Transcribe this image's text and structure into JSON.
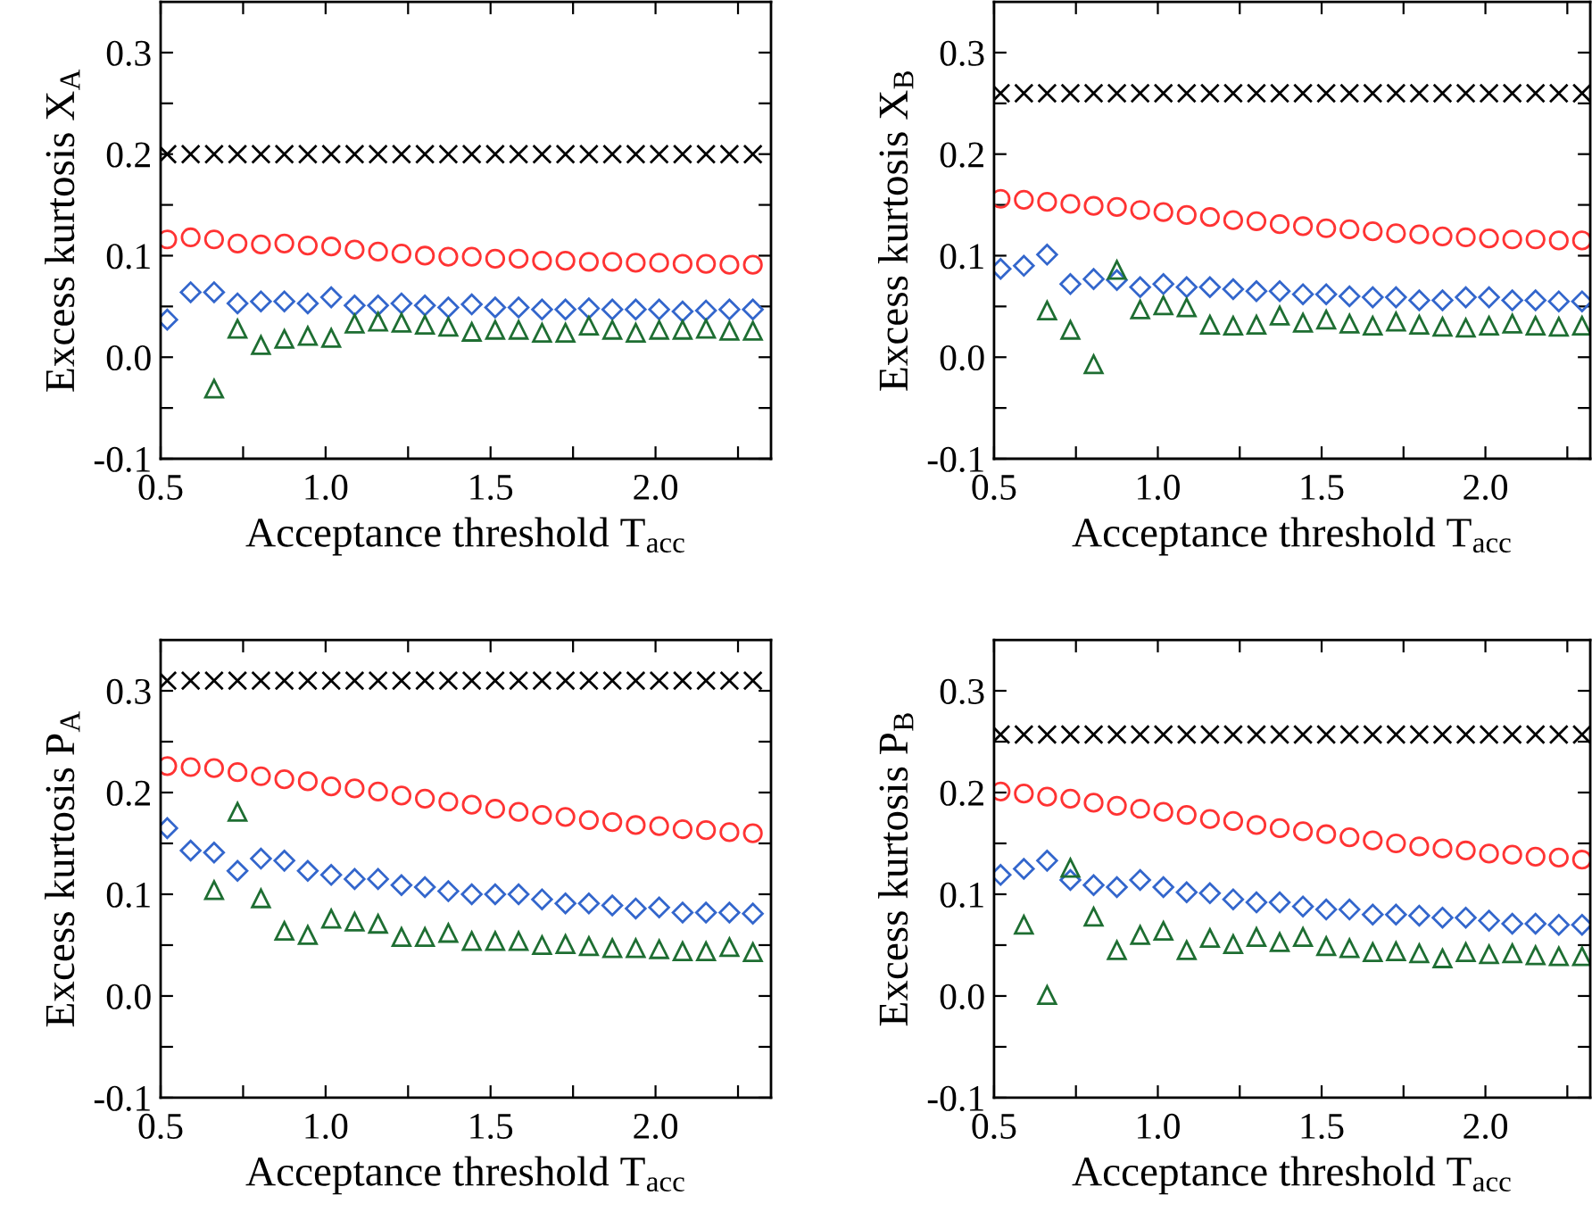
{
  "chart_data": [
    {
      "type": "scatter",
      "ylabel": "Excess kurtosis X$_{A}$",
      "xlabel": "Acceptance threshold T$_{acc}$",
      "xlim": [
        0.5,
        2.35
      ],
      "ylim": [
        -0.1,
        0.35
      ],
      "xticks": [
        {
          "value": 0.5,
          "label": "0.5"
        },
        {
          "value": 0.75,
          "label": null
        },
        {
          "value": 1,
          "label": "1.0"
        },
        {
          "value": 1.25,
          "label": null
        },
        {
          "value": 1.5,
          "label": "1.5"
        },
        {
          "value": 1.75,
          "label": null
        },
        {
          "value": 2,
          "label": "2.0"
        },
        {
          "value": 2.25,
          "label": null
        }
      ],
      "yticks": [
        {
          "value": -0.1,
          "label": "-0.1"
        },
        {
          "value": -0.05,
          "label": null
        },
        {
          "value": 0,
          "label": "0.0"
        },
        {
          "value": 0.05,
          "label": null
        },
        {
          "value": 0.1,
          "label": "0.1"
        },
        {
          "value": 0.15,
          "label": null
        },
        {
          "value": 0.2,
          "label": "0.2"
        },
        {
          "value": 0.25,
          "label": null
        },
        {
          "value": 0.3,
          "label": "0.3"
        }
      ],
      "x": [
        0.52,
        0.591,
        0.662,
        0.733,
        0.804,
        0.875,
        0.946,
        1.017,
        1.088,
        1.159,
        1.23,
        1.301,
        1.372,
        1.443,
        1.514,
        1.585,
        1.656,
        1.727,
        1.798,
        1.869,
        1.94,
        2.011,
        2.082,
        2.153,
        2.224,
        2.295
      ],
      "series": [
        {
          "color": "#000000",
          "marker": "cross",
          "values": [
            0.2,
            0.2,
            0.2,
            0.2,
            0.2,
            0.2,
            0.2,
            0.2,
            0.2,
            0.2,
            0.2,
            0.2,
            0.2,
            0.2,
            0.2,
            0.2,
            0.2,
            0.2,
            0.2,
            0.2,
            0.2,
            0.2,
            0.2,
            0.2,
            0.2,
            0.2
          ]
        },
        {
          "color": "#ff3333",
          "marker": "circle",
          "values": [
            0.116,
            0.118,
            0.116,
            0.112,
            0.111,
            0.112,
            0.11,
            0.109,
            0.106,
            0.104,
            0.102,
            0.1,
            0.099,
            0.099,
            0.097,
            0.097,
            0.095,
            0.095,
            0.094,
            0.094,
            0.093,
            0.093,
            0.092,
            0.092,
            0.091,
            0.091
          ]
        },
        {
          "color": "#3366cc",
          "marker": "diamond",
          "values": [
            0.037,
            0.064,
            0.064,
            0.053,
            0.055,
            0.055,
            0.053,
            0.059,
            0.051,
            0.051,
            0.053,
            0.051,
            0.049,
            0.052,
            0.049,
            0.049,
            0.047,
            0.047,
            0.048,
            0.047,
            0.047,
            0.047,
            0.045,
            0.046,
            0.047,
            0.047
          ]
        },
        {
          "color": "#1e6e32",
          "marker": "triangle",
          "values": [
            null,
            null,
            -0.031,
            0.028,
            0.012,
            0.018,
            0.021,
            0.019,
            0.033,
            0.035,
            0.034,
            0.032,
            0.03,
            0.025,
            0.027,
            0.027,
            0.024,
            0.024,
            0.031,
            0.027,
            0.024,
            0.027,
            0.027,
            0.028,
            0.026,
            0.026
          ]
        }
      ]
    },
    {
      "type": "scatter",
      "ylabel": "Excess kurtosis X$_{B}$",
      "xlabel": "Acceptance threshold T$_{acc}$",
      "xlim": [
        0.5,
        2.32
      ],
      "ylim": [
        -0.1,
        0.35
      ],
      "xticks": [
        {
          "value": 0.5,
          "label": "0.5"
        },
        {
          "value": 0.75,
          "label": null
        },
        {
          "value": 1,
          "label": "1.0"
        },
        {
          "value": 1.25,
          "label": null
        },
        {
          "value": 1.5,
          "label": "1.5"
        },
        {
          "value": 1.75,
          "label": null
        },
        {
          "value": 2,
          "label": "2.0"
        },
        {
          "value": 2.25,
          "label": null
        }
      ],
      "yticks": [
        {
          "value": -0.1,
          "label": "-0.1"
        },
        {
          "value": -0.05,
          "label": null
        },
        {
          "value": 0,
          "label": "0.0"
        },
        {
          "value": 0.05,
          "label": null
        },
        {
          "value": 0.1,
          "label": "0.1"
        },
        {
          "value": 0.15,
          "label": null
        },
        {
          "value": 0.2,
          "label": "0.2"
        },
        {
          "value": 0.25,
          "label": null
        },
        {
          "value": 0.3,
          "label": "0.3"
        }
      ],
      "x": [
        0.52,
        0.591,
        0.662,
        0.733,
        0.804,
        0.875,
        0.946,
        1.017,
        1.088,
        1.159,
        1.23,
        1.301,
        1.372,
        1.443,
        1.514,
        1.585,
        1.656,
        1.727,
        1.798,
        1.869,
        1.94,
        2.011,
        2.082,
        2.153,
        2.224,
        2.295
      ],
      "series": [
        {
          "color": "#000000",
          "marker": "cross",
          "values": [
            0.26,
            0.26,
            0.26,
            0.26,
            0.26,
            0.26,
            0.26,
            0.26,
            0.26,
            0.26,
            0.26,
            0.26,
            0.26,
            0.26,
            0.26,
            0.26,
            0.26,
            0.26,
            0.26,
            0.26,
            0.26,
            0.26,
            0.26,
            0.26,
            0.26,
            0.26
          ]
        },
        {
          "color": "#ff3333",
          "marker": "circle",
          "values": [
            0.156,
            0.155,
            0.153,
            0.151,
            0.149,
            0.148,
            0.145,
            0.143,
            0.14,
            0.138,
            0.135,
            0.134,
            0.131,
            0.129,
            0.127,
            0.126,
            0.124,
            0.122,
            0.121,
            0.119,
            0.118,
            0.117,
            0.116,
            0.116,
            0.115,
            0.115
          ]
        },
        {
          "color": "#3366cc",
          "marker": "diamond",
          "values": [
            0.087,
            0.09,
            0.101,
            0.072,
            0.077,
            0.076,
            0.069,
            0.072,
            0.069,
            0.069,
            0.067,
            0.065,
            0.065,
            0.062,
            0.062,
            0.06,
            0.059,
            0.059,
            0.056,
            0.056,
            0.059,
            0.059,
            0.056,
            0.056,
            0.055,
            0.055
          ]
        },
        {
          "color": "#1e6e32",
          "marker": "triangle",
          "values": [
            null,
            null,
            0.046,
            0.027,
            -0.007,
            0.086,
            0.047,
            0.051,
            0.049,
            0.032,
            0.031,
            0.032,
            0.041,
            0.034,
            0.037,
            0.033,
            0.031,
            0.035,
            0.032,
            0.03,
            0.029,
            0.031,
            0.033,
            0.031,
            0.03,
            0.031
          ]
        }
      ]
    },
    {
      "type": "scatter",
      "ylabel": "Excess kurtosis P$_{A}$",
      "xlabel": "Acceptance threshold T$_{acc}$",
      "xlim": [
        0.5,
        2.35
      ],
      "ylim": [
        -0.1,
        0.35
      ],
      "xticks": [
        {
          "value": 0.5,
          "label": "0.5"
        },
        {
          "value": 0.75,
          "label": null
        },
        {
          "value": 1,
          "label": "1.0"
        },
        {
          "value": 1.25,
          "label": null
        },
        {
          "value": 1.5,
          "label": "1.5"
        },
        {
          "value": 1.75,
          "label": null
        },
        {
          "value": 2,
          "label": "2.0"
        },
        {
          "value": 2.25,
          "label": null
        }
      ],
      "yticks": [
        {
          "value": -0.1,
          "label": "-0.1"
        },
        {
          "value": -0.05,
          "label": null
        },
        {
          "value": 0,
          "label": "0.0"
        },
        {
          "value": 0.05,
          "label": null
        },
        {
          "value": 0.1,
          "label": "0.1"
        },
        {
          "value": 0.15,
          "label": null
        },
        {
          "value": 0.2,
          "label": "0.2"
        },
        {
          "value": 0.25,
          "label": null
        },
        {
          "value": 0.3,
          "label": "0.3"
        }
      ],
      "x": [
        0.52,
        0.591,
        0.662,
        0.733,
        0.804,
        0.875,
        0.946,
        1.017,
        1.088,
        1.159,
        1.23,
        1.301,
        1.372,
        1.443,
        1.514,
        1.585,
        1.656,
        1.727,
        1.798,
        1.869,
        1.94,
        2.011,
        2.082,
        2.153,
        2.224,
        2.295
      ],
      "series": [
        {
          "color": "#000000",
          "marker": "cross",
          "values": [
            0.31,
            0.31,
            0.31,
            0.31,
            0.31,
            0.31,
            0.31,
            0.31,
            0.31,
            0.31,
            0.31,
            0.31,
            0.31,
            0.31,
            0.31,
            0.31,
            0.31,
            0.31,
            0.31,
            0.31,
            0.31,
            0.31,
            0.31,
            0.31,
            0.31,
            0.31
          ]
        },
        {
          "color": "#ff3333",
          "marker": "circle",
          "values": [
            0.226,
            0.225,
            0.224,
            0.22,
            0.216,
            0.213,
            0.211,
            0.206,
            0.204,
            0.201,
            0.197,
            0.194,
            0.191,
            0.188,
            0.184,
            0.181,
            0.178,
            0.176,
            0.173,
            0.171,
            0.168,
            0.167,
            0.164,
            0.163,
            0.161,
            0.16
          ]
        },
        {
          "color": "#3366cc",
          "marker": "diamond",
          "values": [
            0.165,
            0.143,
            0.141,
            0.123,
            0.135,
            0.133,
            0.123,
            0.119,
            0.115,
            0.115,
            0.109,
            0.107,
            0.103,
            0.1,
            0.1,
            0.1,
            0.095,
            0.091,
            0.091,
            0.089,
            0.086,
            0.087,
            0.082,
            0.082,
            0.082,
            0.081
          ]
        },
        {
          "color": "#1e6e32",
          "marker": "triangle",
          "values": [
            null,
            null,
            0.104,
            0.181,
            0.096,
            0.064,
            0.06,
            0.076,
            0.073,
            0.071,
            0.058,
            0.058,
            0.062,
            0.054,
            0.054,
            0.054,
            0.05,
            0.051,
            0.049,
            0.047,
            0.047,
            0.046,
            0.044,
            0.044,
            0.048,
            0.043
          ]
        }
      ]
    },
    {
      "type": "scatter",
      "ylabel": "Excess kurtosis P$_{B}$",
      "xlabel": "Acceptance threshold T$_{acc}$",
      "xlim": [
        0.5,
        2.32
      ],
      "ylim": [
        -0.1,
        0.35
      ],
      "xticks": [
        {
          "value": 0.5,
          "label": "0.5"
        },
        {
          "value": 0.75,
          "label": null
        },
        {
          "value": 1,
          "label": "1.0"
        },
        {
          "value": 1.25,
          "label": null
        },
        {
          "value": 1.5,
          "label": "1.5"
        },
        {
          "value": 1.75,
          "label": null
        },
        {
          "value": 2,
          "label": "2.0"
        },
        {
          "value": 2.25,
          "label": null
        }
      ],
      "yticks": [
        {
          "value": -0.1,
          "label": "-0.1"
        },
        {
          "value": -0.05,
          "label": null
        },
        {
          "value": 0,
          "label": "0.0"
        },
        {
          "value": 0.05,
          "label": null
        },
        {
          "value": 0.1,
          "label": "0.1"
        },
        {
          "value": 0.15,
          "label": null
        },
        {
          "value": 0.2,
          "label": "0.2"
        },
        {
          "value": 0.25,
          "label": null
        },
        {
          "value": 0.3,
          "label": "0.3"
        }
      ],
      "x": [
        0.52,
        0.591,
        0.662,
        0.733,
        0.804,
        0.875,
        0.946,
        1.017,
        1.088,
        1.159,
        1.23,
        1.301,
        1.372,
        1.443,
        1.514,
        1.585,
        1.656,
        1.727,
        1.798,
        1.869,
        1.94,
        2.011,
        2.082,
        2.153,
        2.224,
        2.295
      ],
      "series": [
        {
          "color": "#000000",
          "marker": "cross",
          "values": [
            0.257,
            0.257,
            0.257,
            0.257,
            0.257,
            0.257,
            0.257,
            0.257,
            0.257,
            0.257,
            0.257,
            0.257,
            0.257,
            0.257,
            0.257,
            0.257,
            0.257,
            0.257,
            0.257,
            0.257,
            0.257,
            0.257,
            0.257,
            0.257,
            0.257,
            0.257
          ]
        },
        {
          "color": "#ff3333",
          "marker": "circle",
          "values": [
            0.201,
            0.199,
            0.196,
            0.194,
            0.19,
            0.187,
            0.184,
            0.181,
            0.178,
            0.174,
            0.172,
            0.168,
            0.165,
            0.162,
            0.159,
            0.156,
            0.153,
            0.15,
            0.147,
            0.145,
            0.143,
            0.14,
            0.139,
            0.137,
            0.136,
            0.134
          ]
        },
        {
          "color": "#3366cc",
          "marker": "diamond",
          "values": [
            0.119,
            0.125,
            0.133,
            0.114,
            0.109,
            0.107,
            0.114,
            0.107,
            0.102,
            0.101,
            0.095,
            0.092,
            0.092,
            0.088,
            0.085,
            0.085,
            0.08,
            0.08,
            0.079,
            0.077,
            0.077,
            0.074,
            0.071,
            0.071,
            0.07,
            0.07
          ]
        },
        {
          "color": "#1e6e32",
          "marker": "triangle",
          "values": [
            null,
            0.07,
            0.001,
            0.126,
            0.078,
            0.045,
            0.06,
            0.064,
            0.045,
            0.057,
            0.051,
            0.058,
            0.053,
            0.058,
            0.049,
            0.047,
            0.043,
            0.044,
            0.042,
            0.037,
            0.043,
            0.041,
            0.042,
            0.04,
            0.039,
            0.039
          ]
        }
      ]
    }
  ]
}
